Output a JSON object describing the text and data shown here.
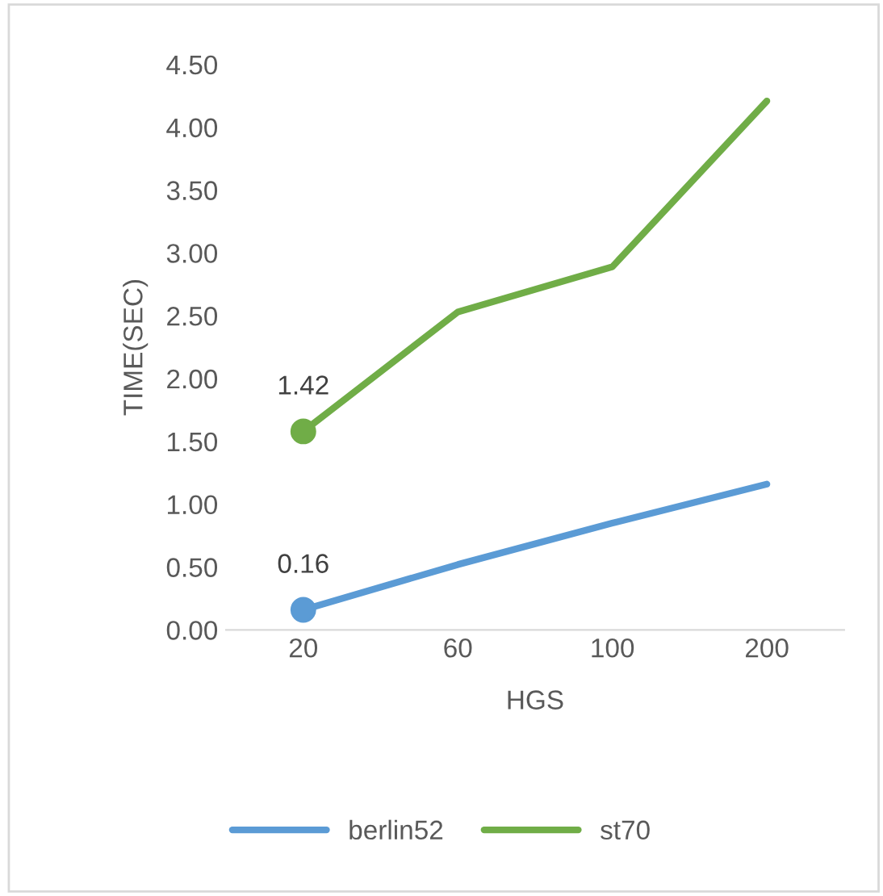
{
  "chart_data": {
    "type": "line",
    "xlabel": "HGS",
    "ylabel": "TIME(SEC)",
    "categories": [
      "20",
      "60",
      "100",
      "200"
    ],
    "series": [
      {
        "name": "berlin52",
        "color": "#5b9bd5",
        "values": [
          0.16,
          0.52,
          0.85,
          1.16
        ]
      },
      {
        "name": "st70",
        "color": "#70ad47",
        "values": [
          1.58,
          2.53,
          2.89,
          4.21
        ]
      },
      {
        "type": "scatter",
        "color": "#5b9bd5",
        "x": [
          "20"
        ],
        "values": [
          0.16
        ]
      },
      {
        "type": "scatter",
        "color": "#70ad47",
        "x": [
          "20"
        ],
        "values": [
          1.58
        ]
      }
    ],
    "annotations": [
      {
        "text": "0.16",
        "x": "20",
        "y": 0.16
      },
      {
        "text": "1.42",
        "x": "20",
        "y": 1.58
      }
    ],
    "ylim": [
      0,
      4.5
    ],
    "yticks": [
      {
        "value": 0,
        "label": "0.00"
      },
      {
        "value": 0.5,
        "label": "0.50"
      },
      {
        "value": 1,
        "label": "1.00"
      },
      {
        "value": 1.5,
        "label": "1.50"
      },
      {
        "value": 2,
        "label": "2.00"
      },
      {
        "value": 2.5,
        "label": "2.50"
      },
      {
        "value": 3,
        "label": "3.00"
      },
      {
        "value": 3.5,
        "label": "3.50"
      },
      {
        "value": 4,
        "label": "4.00"
      },
      {
        "value": 4.5,
        "label": "4.50"
      }
    ],
    "grid": false,
    "legend": "bottom",
    "line_style": "solid"
  }
}
